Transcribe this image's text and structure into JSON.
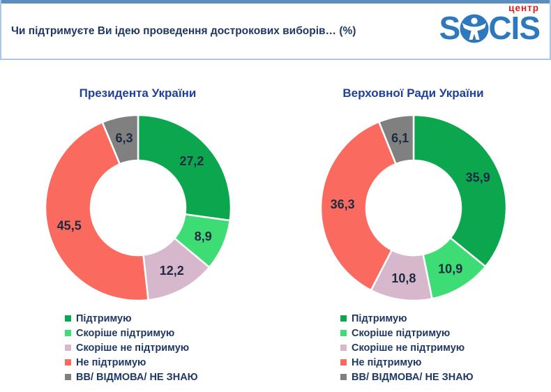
{
  "header": {
    "title": "Чи підтримуєте Ви ідею проведення дострокових виборів…  (%)",
    "logo": {
      "top_label": "центр",
      "left_text": "S",
      "right_text": "CIS"
    }
  },
  "legend": {
    "items": [
      "Підтримую",
      "Скоріше підтримую",
      "Скоріше не підтримую",
      "Не підтримую",
      "ВВ/ ВІДМОВА/ НЕ ЗНАЮ"
    ]
  },
  "colors": {
    "series": [
      "#0CA64F",
      "#3EDC75",
      "#D7B7CB",
      "#FB6A5E",
      "#808080"
    ],
    "slice_label": "#1B2A41",
    "header_accent": "#5A8CBE",
    "header_border": "#A9C8E6",
    "header_title_text": "#1F3864",
    "chart_title_text": "#21409A",
    "legend_text": "#1F3864",
    "logo_blue": "#2E79BE",
    "logo_red": "#D61F1F"
  },
  "chart_data": [
    {
      "type": "pie",
      "variant": "donut",
      "title": "Президента України",
      "categories": [
        "Підтримую",
        "Скоріше підтримую",
        "Скоріше не підтримую",
        "Не підтримую",
        "ВВ/ ВІДМОВА/ НЕ ЗНАЮ"
      ],
      "values": [
        27.2,
        8.9,
        12.2,
        45.5,
        6.3
      ],
      "labels": [
        "27,2",
        "8,9",
        "12,2",
        "45,5",
        "6,3"
      ],
      "start_angle": "top",
      "direction": "clockwise",
      "legend_position": "bottom-left"
    },
    {
      "type": "pie",
      "variant": "donut",
      "title": "Верховної Ради України",
      "categories": [
        "Підтримую",
        "Скоріше підтримую",
        "Скоріше не підтримую",
        "Не підтримую",
        "ВВ/ ВІДМОВА/ НЕ ЗНАЮ"
      ],
      "values": [
        35.9,
        10.9,
        10.8,
        36.3,
        6.1
      ],
      "labels": [
        "35,9",
        "10,9",
        "10,8",
        "36,3",
        "6,1"
      ],
      "start_angle": "top",
      "direction": "clockwise",
      "legend_position": "bottom-left"
    }
  ]
}
